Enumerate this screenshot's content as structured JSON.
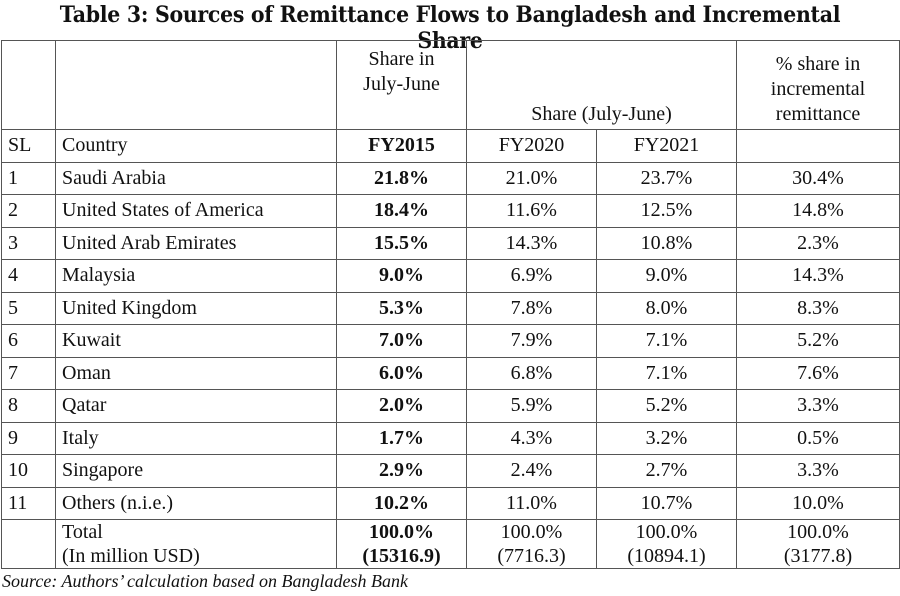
{
  "title": "Table 3: Sources of Remittance Flows to Bangladesh and Incremental Share",
  "header": {
    "share_in": "Share in",
    "july_june": "July-June",
    "share_july_june": "Share (July-June)",
    "pct_share_l1": "% share in",
    "pct_share_l2": "incremental",
    "pct_share_l3": "remittance",
    "sl": "SL",
    "country": "Country",
    "fy2015": "FY2015",
    "fy2020": "FY2020",
    "fy2021": "FY2021"
  },
  "rows": [
    {
      "sl": "1",
      "country": "Saudi Arabia",
      "fy2015": "21.8%",
      "fy2020": "21.0%",
      "fy2021": "23.7%",
      "incr": "30.4%"
    },
    {
      "sl": "2",
      "country": "United States of America",
      "fy2015": "18.4%",
      "fy2020": "11.6%",
      "fy2021": "12.5%",
      "incr": "14.8%"
    },
    {
      "sl": "3",
      "country": "United Arab Emirates",
      "fy2015": "15.5%",
      "fy2020": "14.3%",
      "fy2021": "10.8%",
      "incr": "2.3%"
    },
    {
      "sl": "4",
      "country": "Malaysia",
      "fy2015": "9.0%",
      "fy2020": "6.9%",
      "fy2021": "9.0%",
      "incr": "14.3%"
    },
    {
      "sl": "5",
      "country": "United Kingdom",
      "fy2015": "5.3%",
      "fy2020": "7.8%",
      "fy2021": "8.0%",
      "incr": "8.3%"
    },
    {
      "sl": "6",
      "country": "Kuwait",
      "fy2015": "7.0%",
      "fy2020": "7.9%",
      "fy2021": "7.1%",
      "incr": "5.2%"
    },
    {
      "sl": "7",
      "country": "Oman",
      "fy2015": "6.0%",
      "fy2020": "6.8%",
      "fy2021": "7.1%",
      "incr": "7.6%"
    },
    {
      "sl": "8",
      "country": "Qatar",
      "fy2015": "2.0%",
      "fy2020": "5.9%",
      "fy2021": "5.2%",
      "incr": "3.3%"
    },
    {
      "sl": "9",
      "country": "Italy",
      "fy2015": "1.7%",
      "fy2020": "4.3%",
      "fy2021": "3.2%",
      "incr": "0.5%"
    },
    {
      "sl": "10",
      "country": "Singapore",
      "fy2015": "2.9%",
      "fy2020": "2.4%",
      "fy2021": "2.7%",
      "incr": "3.3%"
    },
    {
      "sl": "11",
      "country": "Others (n.i.e.)",
      "fy2015": "10.2%",
      "fy2020": "11.0%",
      "fy2021": "10.7%",
      "incr": "10.0%"
    }
  ],
  "total": {
    "label": "Total",
    "sublabel": "(In million USD)",
    "fy2015": "100.0%",
    "fy2015_usd": "(15316.9)",
    "fy2020": "100.0%",
    "fy2020_usd": "(7716.3)",
    "fy2021": "100.0%",
    "fy2021_usd": "(10894.1)",
    "incr": "100.0%",
    "incr_usd": "(3177.8)"
  },
  "source": "Source: Authors’ calculation based on Bangladesh Bank"
}
